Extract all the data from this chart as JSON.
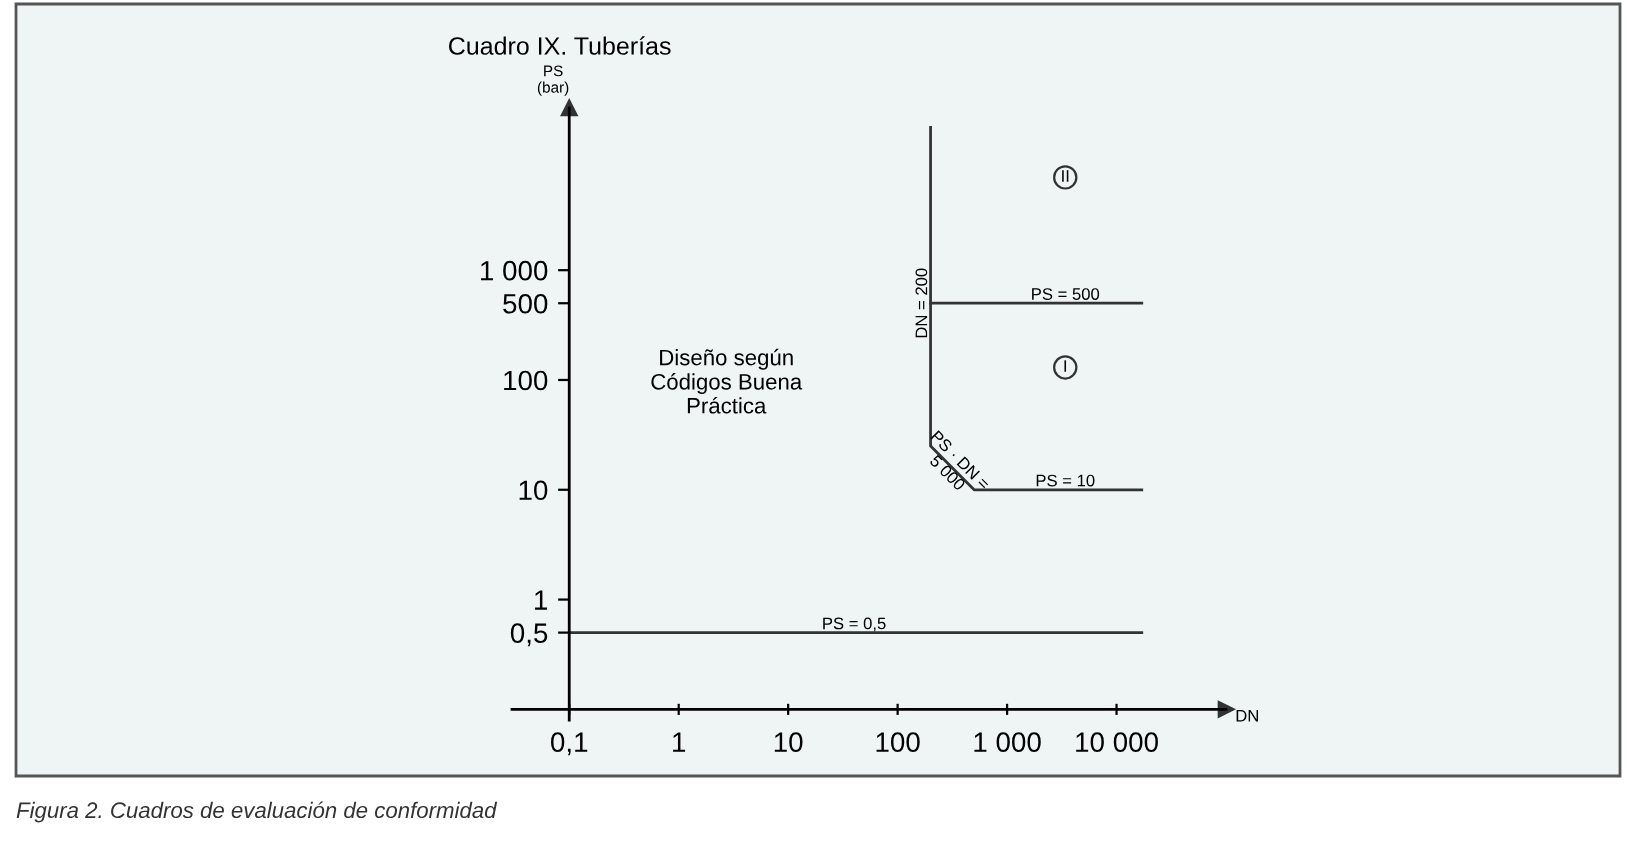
{
  "chart_data": {
    "type": "line",
    "title": "Cuadro IX. Tuberías",
    "xlabel": "DN",
    "ylabel": "PS\n(bar)",
    "log": "xy",
    "grid": false,
    "marker": "none",
    "line_style": "solid",
    "xlim": [
      0.03,
      100000
    ],
    "ylim": [
      0.08,
      30000
    ],
    "xticks": [
      {
        "value": 0.1,
        "label": "0,1"
      },
      1,
      10,
      100,
      {
        "value": 1000,
        "label": "1 000"
      },
      {
        "value": 10000,
        "label": "10 000"
      }
    ],
    "yticks": [
      {
        "value": 0.5,
        "label": "0,5"
      },
      1,
      10,
      100,
      500,
      {
        "value": 1000,
        "label": "1 000"
      }
    ],
    "series": [
      {
        "color": "#333333",
        "x": [
          0.1,
          17000
        ],
        "values": [
          0.5,
          0.5
        ]
      },
      {
        "color": "#333333",
        "x": [
          200,
          200,
          500,
          17000
        ],
        "values": [
          20000,
          25,
          10,
          10
        ]
      },
      {
        "color": "#333333",
        "x": [
          200,
          17000
        ],
        "values": [
          500,
          500
        ]
      }
    ],
    "annotations": [
      {
        "text": "PS = 0,5",
        "x": 40,
        "y": 0.5
      },
      {
        "text": "PS = 10",
        "x": 3400,
        "y": 10
      },
      {
        "text": "PS = 500",
        "x": 3400,
        "y": 500
      },
      {
        "text": "DN = 200",
        "x": 200,
        "y": 500
      },
      {
        "text": "PS · DN =\n5 000",
        "x": 320,
        "y": 16
      },
      {
        "text": "I",
        "x": 3400,
        "y": 130
      },
      {
        "text": "II",
        "x": 3400,
        "y": 7000
      },
      "Diseño según\nCódigos Buena\nPráctica",
      "Figura 2. Cuadros de evaluación de conformidad"
    ]
  }
}
